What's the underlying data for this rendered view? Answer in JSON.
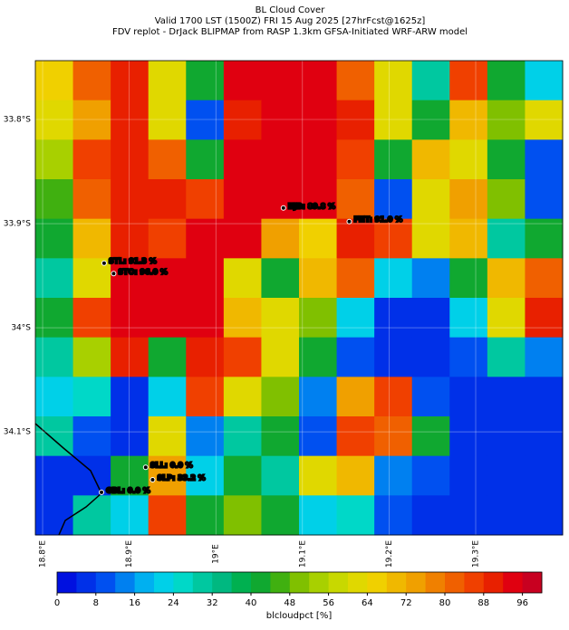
{
  "chart_data": {
    "type": "heatmap-map",
    "title": "BL Cloud Cover",
    "subtitle": "Valid 1700 LST (1500Z) FRI 15 Aug 2025 [27hrFcst@1625z]",
    "subtitle2": "FDV replot - DrJack BLIPMAP from RASP 1.3km GFSA-Initiated WRF-ARW model",
    "xlim": [
      18.7916,
      19.4004
    ],
    "ylim": [
      -33.7435,
      -34.199
    ],
    "xticks": [
      {
        "value": 18.8,
        "label": "18.8°E"
      },
      {
        "value": 18.9,
        "label": "18.9°E"
      },
      {
        "value": 19.0,
        "label": "19°E"
      },
      {
        "value": 19.1,
        "label": "19.1°E"
      },
      {
        "value": 19.2,
        "label": "19.2°E"
      },
      {
        "value": 19.3,
        "label": "19.3°E"
      }
    ],
    "yticks": [
      {
        "value": -33.8,
        "label": "33.8°S"
      },
      {
        "value": -33.9,
        "label": "33.9°S"
      },
      {
        "value": -34.0,
        "label": "34°S"
      },
      {
        "value": -34.1,
        "label": "34.1°S"
      }
    ],
    "grid": true,
    "values": [
      [
        65,
        80,
        90,
        60,
        40,
        92,
        95,
        95,
        80,
        60,
        30,
        85,
        40,
        20
      ],
      [
        60,
        75,
        90,
        60,
        8,
        90,
        95,
        95,
        88,
        60,
        40,
        70,
        50,
        60
      ],
      [
        55,
        85,
        90,
        80,
        40,
        95,
        95,
        95,
        85,
        40,
        70,
        60,
        40,
        10
      ],
      [
        45,
        80,
        90,
        88,
        85,
        95,
        95,
        92,
        80,
        10,
        60,
        75,
        50,
        10
      ],
      [
        40,
        70,
        90,
        85,
        95,
        95,
        75,
        65,
        90,
        85,
        60,
        70,
        30,
        40
      ],
      [
        30,
        60,
        95,
        95,
        92,
        60,
        40,
        70,
        80,
        20,
        15,
        40,
        70,
        80
      ],
      [
        40,
        85,
        95,
        92,
        92,
        70,
        60,
        50,
        20,
        5,
        5,
        20,
        60,
        90
      ],
      [
        30,
        55,
        90,
        40,
        90,
        85,
        60,
        40,
        10,
        5,
        5,
        10,
        30,
        15
      ],
      [
        20,
        25,
        5,
        20,
        85,
        60,
        50,
        15,
        75,
        85,
        10,
        5,
        5,
        5
      ],
      [
        30,
        10,
        5,
        60,
        15,
        30,
        40,
        10,
        85,
        80,
        40,
        5,
        5,
        5
      ],
      [
        5,
        5,
        40,
        75,
        20,
        40,
        30,
        60,
        70,
        15,
        10,
        5,
        5,
        5
      ],
      [
        5,
        30,
        20,
        85,
        40,
        50,
        40,
        20,
        25,
        10,
        5,
        5,
        5,
        5
      ]
    ],
    "stations": [
      {
        "label": "HJB: 89.8 %",
        "lon": 19.078,
        "lat": -33.885
      },
      {
        "label": "FHT: 91.0 %",
        "lon": 19.154,
        "lat": -33.898
      },
      {
        "label": "STL: 91.3 %",
        "lon": 18.871,
        "lat": -33.938
      },
      {
        "label": "STO: 96.0 %",
        "lon": 18.882,
        "lat": -33.948
      },
      {
        "label": "SLL: 0.0 %",
        "lon": 18.919,
        "lat": -34.134
      },
      {
        "label": "SLP: 33.2 %",
        "lon": 18.927,
        "lat": -34.146
      },
      {
        "label": "GBL: 0.0 %",
        "lon": 18.868,
        "lat": -34.158
      }
    ],
    "colorbar": {
      "clim": [
        0,
        100
      ],
      "ticks": [
        0,
        8,
        16,
        24,
        32,
        40,
        48,
        56,
        64,
        72,
        80,
        88,
        96
      ],
      "label": "blcloudpct [%]",
      "colors": [
        "#0010e0",
        "#0030e8",
        "#0050f0",
        "#0080f0",
        "#00b0f0",
        "#00d0e8",
        "#00d8c8",
        "#00c8a0",
        "#00b880",
        "#00b050",
        "#10a830",
        "#40b010",
        "#80c000",
        "#a8d000",
        "#c8d800",
        "#e0d800",
        "#f0d000",
        "#f0b800",
        "#f0a000",
        "#f08000",
        "#f06000",
        "#f04000",
        "#e82000",
        "#e00010",
        "#c80020"
      ]
    }
  }
}
